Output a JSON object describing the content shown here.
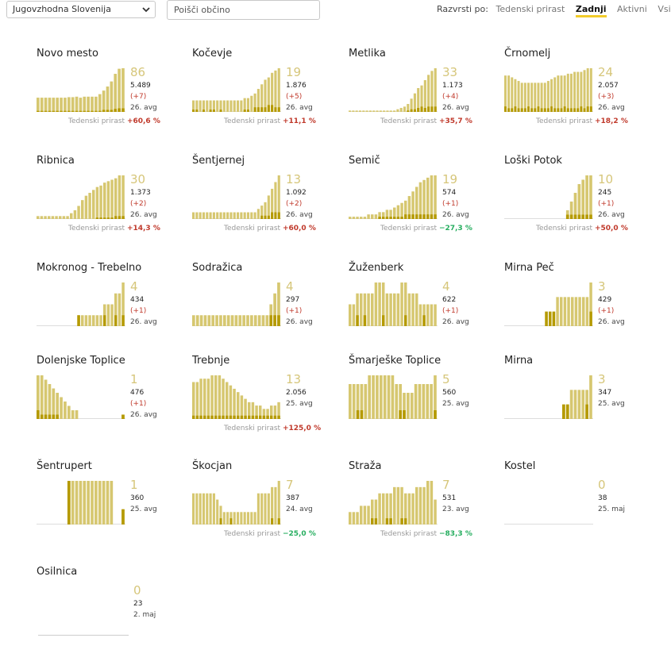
{
  "toolbar": {
    "region": "Jugovzhodna Slovenija",
    "search_placeholder": "Poišči občino",
    "sort_label": "Razvrsti po:",
    "sort_options": [
      "Tedenski prirast",
      "Zadnji",
      "Aktivni",
      "Vsi"
    ],
    "sort_active": "Zadnji"
  },
  "colors": {
    "bar_light": "#d6c770",
    "bar_dark": "#b59a00",
    "value": "#d6c67a",
    "up": "#c0392b",
    "down": "#27ae60"
  },
  "icons": {
    "dropdown": "chevron-down-icon"
  },
  "growth_label": "Tedenski prirast",
  "municipalities": [
    {
      "name": "Novo mesto",
      "value": "86",
      "total": "5.489",
      "delta": "(+7)",
      "date": "26. avg",
      "growth": "+60,6 %",
      "dir": "up",
      "bars": [
        28,
        28,
        28,
        28,
        28,
        28,
        28,
        28,
        29,
        29,
        30,
        28,
        30,
        30,
        30,
        30,
        35,
        42,
        50,
        60,
        75,
        85,
        86
      ],
      "dark": [
        2,
        2,
        2,
        2,
        2,
        2,
        2,
        2,
        2,
        2,
        2,
        2,
        2,
        2,
        2,
        2,
        2,
        4,
        4,
        4,
        6,
        7,
        7
      ]
    },
    {
      "name": "Kočevje",
      "value": "19",
      "total": "1.876",
      "delta": "(+5)",
      "date": "26. avg",
      "growth": "+11,1 %",
      "dir": "up",
      "bars": [
        5,
        5,
        5,
        5,
        5,
        5,
        5,
        5,
        5,
        5,
        5,
        5,
        5,
        5,
        5,
        6,
        6,
        7,
        8,
        10,
        12,
        14,
        15,
        17,
        18,
        19
      ],
      "dark": [
        1,
        1,
        0,
        1,
        0,
        1,
        1,
        0,
        1,
        0,
        0,
        0,
        0,
        0,
        0,
        1,
        1,
        0,
        2,
        2,
        2,
        2,
        3,
        3,
        2,
        2
      ]
    },
    {
      "name": "Metlika",
      "value": "33",
      "total": "1.173",
      "delta": "(+4)",
      "date": "26. avg",
      "growth": "+35,7 %",
      "dir": "up",
      "bars": [
        1,
        1,
        1,
        1,
        1,
        1,
        1,
        1,
        1,
        1,
        1,
        1,
        1,
        1,
        2,
        3,
        4,
        6,
        10,
        14,
        18,
        20,
        24,
        28,
        31,
        33
      ],
      "dark": [
        0,
        0,
        0,
        0,
        0,
        0,
        0,
        0,
        0,
        0,
        0,
        0,
        0,
        0,
        0,
        0,
        0,
        1,
        2,
        2,
        3,
        4,
        3,
        4,
        4,
        4
      ]
    },
    {
      "name": "Črnomelj",
      "value": "24",
      "total": "2.057",
      "delta": "(+3)",
      "date": "26. avg",
      "growth": "+18,2 %",
      "dir": "up",
      "bars": [
        20,
        20,
        19,
        18,
        17,
        16,
        16,
        16,
        16,
        16,
        16,
        16,
        16,
        17,
        18,
        19,
        20,
        20,
        20,
        21,
        21,
        22,
        22,
        22,
        23,
        24,
        24
      ],
      "dark": [
        3,
        2,
        2,
        3,
        2,
        2,
        2,
        3,
        2,
        2,
        3,
        2,
        2,
        2,
        3,
        2,
        2,
        2,
        3,
        2,
        2,
        2,
        2,
        3,
        2,
        3,
        3
      ]
    },
    {
      "name": "Ribnica",
      "value": "30",
      "total": "1.373",
      "delta": "(+2)",
      "date": "26. avg",
      "growth": "+14,3 %",
      "dir": "up",
      "bars": [
        2,
        2,
        2,
        2,
        2,
        2,
        2,
        2,
        2,
        4,
        6,
        9,
        13,
        16,
        18,
        20,
        22,
        23,
        25,
        26,
        27,
        28,
        30,
        30
      ],
      "dark": [
        0,
        0,
        0,
        0,
        0,
        0,
        0,
        0,
        0,
        0,
        0,
        0,
        0,
        0,
        0,
        0,
        1,
        1,
        1,
        1,
        1,
        2,
        2,
        2
      ]
    },
    {
      "name": "Šentjernej",
      "value": "13",
      "total": "1.092",
      "delta": "(+2)",
      "date": "26. avg",
      "growth": "+60,0 %",
      "dir": "up",
      "bars": [
        2,
        2,
        2,
        2,
        2,
        2,
        2,
        2,
        2,
        2,
        2,
        2,
        2,
        2,
        2,
        2,
        2,
        2,
        2,
        3,
        4,
        5,
        7,
        9,
        11,
        13
      ],
      "dark": [
        0,
        0,
        0,
        0,
        0,
        0,
        0,
        0,
        0,
        0,
        0,
        0,
        0,
        0,
        0,
        0,
        0,
        0,
        0,
        0,
        1,
        1,
        1,
        2,
        2,
        2
      ]
    },
    {
      "name": "Semič",
      "value": "19",
      "total": "574",
      "delta": "(+1)",
      "date": "26. avg",
      "growth": "−27,3 %",
      "dir": "down",
      "bars": [
        1,
        1,
        1,
        1,
        1,
        2,
        2,
        2,
        3,
        3,
        4,
        4,
        5,
        6,
        7,
        8,
        10,
        12,
        14,
        16,
        17,
        18,
        19,
        19
      ],
      "dark": [
        0,
        0,
        0,
        0,
        0,
        0,
        0,
        0,
        1,
        1,
        1,
        1,
        1,
        1,
        1,
        2,
        2,
        2,
        2,
        2,
        2,
        2,
        2,
        2
      ]
    },
    {
      "name": "Loški Potok",
      "value": "10",
      "total": "245",
      "delta": "(+1)",
      "date": "26. avg",
      "growth": "+50,0 %",
      "dir": "up",
      "bars": [
        0,
        0,
        0,
        0,
        0,
        0,
        0,
        0,
        0,
        0,
        0,
        0,
        0,
        0,
        0,
        0,
        2,
        4,
        6,
        8,
        9,
        10,
        10
      ],
      "dark": [
        0,
        0,
        0,
        0,
        0,
        0,
        0,
        0,
        0,
        0,
        0,
        0,
        0,
        0,
        0,
        0,
        1,
        1,
        1,
        1,
        1,
        1,
        1
      ]
    },
    {
      "name": "Mokronog - Trebelno",
      "value": "4",
      "total": "434",
      "delta": "(+1)",
      "date": "26. avg",
      "growth": "",
      "dir": "up",
      "bars": [
        0,
        0,
        0,
        0,
        0,
        0,
        0,
        0,
        0,
        0,
        0,
        1,
        1,
        1,
        1,
        1,
        1,
        1,
        2,
        2,
        2,
        3,
        3,
        4
      ],
      "dark": [
        0,
        0,
        0,
        0,
        0,
        0,
        0,
        0,
        0,
        0,
        0,
        1,
        0,
        0,
        0,
        0,
        0,
        0,
        1,
        0,
        0,
        1,
        0,
        1
      ]
    },
    {
      "name": "Sodražica",
      "value": "4",
      "total": "297",
      "delta": "(+1)",
      "date": "26. avg",
      "growth": "",
      "dir": "up",
      "bars": [
        1,
        1,
        1,
        1,
        1,
        1,
        1,
        1,
        1,
        1,
        1,
        1,
        1,
        1,
        1,
        1,
        1,
        1,
        1,
        1,
        2,
        3,
        4
      ],
      "dark": [
        0,
        0,
        0,
        0,
        0,
        0,
        0,
        0,
        0,
        0,
        0,
        0,
        0,
        0,
        0,
        0,
        0,
        0,
        0,
        0,
        1,
        1,
        1
      ]
    },
    {
      "name": "Žuženberk",
      "value": "4",
      "total": "622",
      "delta": "(+1)",
      "date": "26. avg",
      "growth": "",
      "dir": "up",
      "bars": [
        2,
        2,
        3,
        3,
        3,
        3,
        3,
        4,
        4,
        4,
        3,
        3,
        3,
        3,
        4,
        4,
        3,
        3,
        3,
        2,
        2,
        2,
        2,
        2
      ],
      "dark": [
        0,
        0,
        1,
        0,
        1,
        0,
        0,
        0,
        0,
        1,
        0,
        0,
        0,
        0,
        0,
        1,
        0,
        0,
        0,
        0,
        1,
        0,
        0,
        0
      ]
    },
    {
      "name": "Mirna Peč",
      "value": "3",
      "total": "429",
      "delta": "(+1)",
      "date": "26. avg",
      "growth": "",
      "dir": "up",
      "bars": [
        0,
        0,
        0,
        0,
        0,
        0,
        0,
        0,
        0,
        0,
        0,
        1,
        1,
        1,
        2,
        2,
        2,
        2,
        2,
        2,
        2,
        2,
        2,
        3
      ],
      "dark": [
        0,
        0,
        0,
        0,
        0,
        0,
        0,
        0,
        0,
        0,
        0,
        1,
        1,
        1,
        0,
        0,
        0,
        0,
        0,
        0,
        0,
        0,
        0,
        1
      ]
    },
    {
      "name": "Dolenjske Toplice",
      "value": "1",
      "total": "476",
      "delta": "(+1)",
      "date": "26. avg",
      "growth": "",
      "dir": "up",
      "bars": [
        10,
        10,
        9,
        8,
        7,
        6,
        5,
        4,
        3,
        2,
        2,
        0,
        0,
        0,
        0,
        0,
        0,
        0,
        0,
        0,
        0,
        0,
        1
      ],
      "dark": [
        2,
        1,
        1,
        1,
        1,
        1,
        0,
        0,
        0,
        0,
        0,
        0,
        0,
        0,
        0,
        0,
        0,
        0,
        0,
        0,
        0,
        0,
        1
      ]
    },
    {
      "name": "Trebnje",
      "value": "13",
      "total": "2.056",
      "delta": "",
      "date": "25. avg",
      "growth": "+125,0 %",
      "dir": "up",
      "bars": [
        11,
        11,
        12,
        12,
        12,
        13,
        13,
        13,
        12,
        11,
        10,
        9,
        8,
        7,
        6,
        5,
        5,
        4,
        4,
        3,
        3,
        4,
        4,
        5
      ],
      "dark": [
        1,
        1,
        1,
        1,
        1,
        1,
        1,
        1,
        1,
        1,
        1,
        1,
        1,
        1,
        1,
        1,
        1,
        1,
        1,
        1,
        1,
        1,
        1,
        1
      ]
    },
    {
      "name": "Šmarješke Toplice",
      "value": "5",
      "total": "560",
      "delta": "",
      "date": "25. avg",
      "growth": "",
      "dir": "up",
      "bars": [
        4,
        4,
        4,
        4,
        4,
        5,
        5,
        5,
        5,
        5,
        5,
        5,
        4,
        4,
        3,
        3,
        3,
        4,
        4,
        4,
        4,
        4,
        5
      ],
      "dark": [
        0,
        0,
        1,
        1,
        0,
        0,
        0,
        0,
        0,
        0,
        0,
        0,
        0,
        1,
        1,
        0,
        0,
        0,
        0,
        0,
        0,
        0,
        1
      ]
    },
    {
      "name": "Mirna",
      "value": "3",
      "total": "347",
      "delta": "",
      "date": "25. avg",
      "growth": "",
      "dir": "up",
      "bars": [
        0,
        0,
        0,
        0,
        0,
        0,
        0,
        0,
        0,
        0,
        0,
        0,
        0,
        0,
        0,
        1,
        1,
        2,
        2,
        2,
        2,
        2,
        3
      ],
      "dark": [
        0,
        0,
        0,
        0,
        0,
        0,
        0,
        0,
        0,
        0,
        0,
        0,
        0,
        0,
        0,
        1,
        1,
        0,
        0,
        0,
        0,
        1,
        0
      ]
    },
    {
      "name": "Šentrupert",
      "value": "1",
      "total": "360",
      "delta": "",
      "date": "25. avg",
      "growth": "",
      "dir": "up",
      "bars": [
        0,
        0,
        0,
        0,
        0,
        0,
        0,
        0,
        1,
        1,
        1,
        1,
        1,
        1,
        1,
        1,
        1,
        1,
        1,
        1,
        0,
        0,
        0.35
      ],
      "dark": [
        0,
        0,
        0,
        0,
        0,
        0,
        0,
        0,
        1,
        0,
        0,
        0,
        0,
        0,
        0,
        0,
        0,
        0,
        0,
        0,
        0,
        0,
        0.35
      ]
    },
    {
      "name": "Škocjan",
      "value": "7",
      "total": "387",
      "delta": "",
      "date": "24. avg",
      "growth": "−25,0 %",
      "dir": "down",
      "bars": [
        5,
        5,
        5,
        5,
        5,
        5,
        5,
        4,
        3,
        2,
        2,
        2,
        2,
        2,
        2,
        2,
        2,
        2,
        2,
        5,
        5,
        5,
        5,
        6,
        6,
        7
      ],
      "dark": [
        0,
        0,
        0,
        0,
        0,
        0,
        0,
        0,
        1,
        0,
        0,
        1,
        0,
        0,
        0,
        0,
        0,
        0,
        0,
        0,
        0,
        0,
        0,
        1,
        0,
        1
      ]
    },
    {
      "name": "Straža",
      "value": "7",
      "total": "531",
      "delta": "",
      "date": "23. avg",
      "growth": "−83,3 %",
      "dir": "down",
      "bars": [
        2,
        2,
        2,
        3,
        3,
        3,
        4,
        4,
        5,
        5,
        5,
        5,
        6,
        6,
        6,
        5,
        5,
        5,
        6,
        6,
        6,
        7,
        7,
        4
      ],
      "dark": [
        0,
        0,
        0,
        0,
        0,
        0,
        1,
        1,
        0,
        0,
        1,
        1,
        0,
        0,
        1,
        1,
        0,
        0,
        0,
        0,
        0,
        0,
        0,
        0
      ]
    },
    {
      "name": "Kostel",
      "value": "0",
      "total": "38",
      "delta": "",
      "date": "25. maj",
      "growth": "",
      "dir": "up",
      "bars": [],
      "dark": []
    },
    {
      "name": "Osilnica",
      "value": "0",
      "total": "23",
      "delta": "",
      "date": "2. maj",
      "growth": "",
      "dir": "up",
      "bars": [],
      "dark": []
    }
  ]
}
